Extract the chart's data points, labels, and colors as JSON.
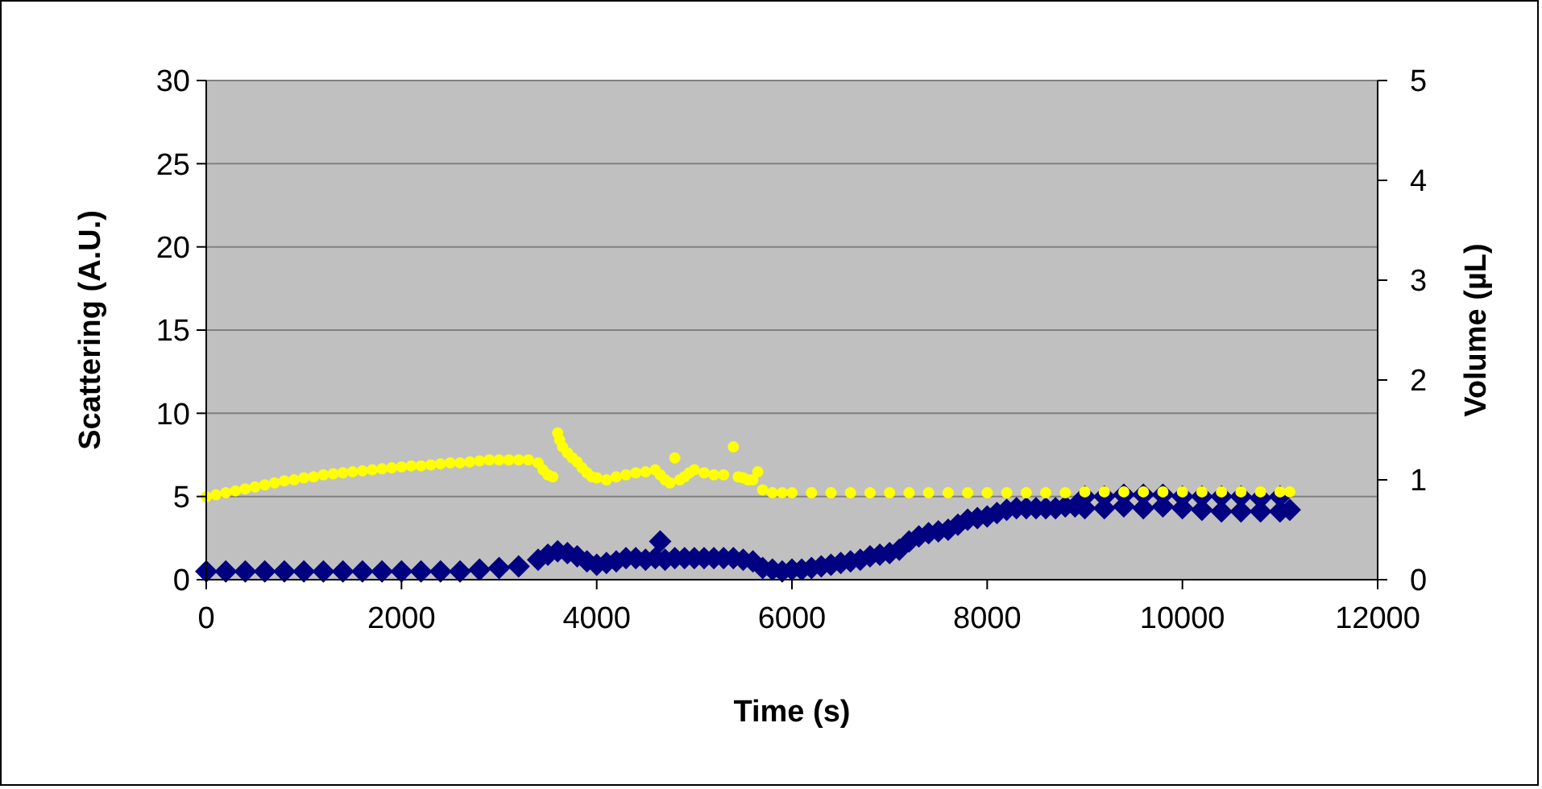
{
  "chart_data": {
    "type": "scatter",
    "xlabel": "Time (s)",
    "ylabel": "Scattering (A.U.)",
    "y2label": "Volume (µL)",
    "xlim": [
      0,
      12000
    ],
    "xticks": [
      0,
      2000,
      4000,
      6000,
      8000,
      10000,
      12000
    ],
    "ylim": [
      0,
      30
    ],
    "yticks": [
      0,
      5,
      10,
      15,
      20,
      25,
      30
    ],
    "y2lim": [
      0,
      5
    ],
    "y2ticks": [
      0,
      1,
      2,
      3,
      4,
      5
    ],
    "grid": "y",
    "series": [
      {
        "color": "#000080",
        "marker": "diamond",
        "x": [
          0,
          200,
          400,
          600,
          800,
          1000,
          1200,
          1400,
          1600,
          1800,
          2000,
          2200,
          2400,
          2600,
          2800,
          3000,
          3200,
          3400,
          3500,
          3600,
          3700,
          3800,
          3900,
          4000,
          4100,
          4200,
          4300,
          4400,
          4500,
          4600,
          4650,
          4700,
          4800,
          4900,
          5000,
          5100,
          5200,
          5300,
          5400,
          5500,
          5600,
          5700,
          5800,
          5900,
          6000,
          6100,
          6200,
          6300,
          6400,
          6500,
          6600,
          6700,
          6800,
          6900,
          7000,
          7100,
          7200,
          7300,
          7400,
          7500,
          7600,
          7700,
          7800,
          7900,
          8000,
          8100,
          8200,
          8300,
          8400,
          8500,
          8600,
          8700,
          8800,
          8900,
          9000,
          9000,
          9200,
          9200,
          9400,
          9400,
          9600,
          9600,
          9800,
          9800,
          10000,
          10000,
          10200,
          10200,
          10400,
          10400,
          10600,
          10600,
          10800,
          10800,
          11000,
          11000,
          11100
        ],
        "values": [
          0.5,
          0.5,
          0.5,
          0.5,
          0.5,
          0.5,
          0.5,
          0.5,
          0.5,
          0.5,
          0.5,
          0.5,
          0.5,
          0.5,
          0.6,
          0.7,
          0.8,
          1.2,
          1.5,
          1.7,
          1.6,
          1.4,
          1.1,
          0.9,
          1.0,
          1.1,
          1.3,
          1.3,
          1.2,
          1.3,
          2.3,
          1.2,
          1.3,
          1.3,
          1.3,
          1.3,
          1.3,
          1.3,
          1.3,
          1.2,
          1.1,
          0.7,
          0.6,
          0.5,
          0.6,
          0.6,
          0.7,
          0.8,
          0.9,
          1.0,
          1.1,
          1.2,
          1.4,
          1.5,
          1.6,
          1.8,
          2.3,
          2.6,
          2.8,
          2.9,
          3.0,
          3.3,
          3.6,
          3.7,
          3.8,
          4.0,
          4.2,
          4.3,
          4.3,
          4.3,
          4.3,
          4.3,
          4.4,
          4.4,
          4.3,
          5.0,
          4.3,
          5.0,
          4.4,
          5.1,
          4.3,
          5.1,
          4.4,
          5.1,
          4.3,
          5.0,
          4.2,
          5.0,
          4.1,
          5.0,
          4.1,
          5.0,
          4.1,
          4.9,
          4.1,
          5.0,
          4.2
        ]
      },
      {
        "color": "#ffff00",
        "marker": "circle",
        "axis": "y2",
        "x": [
          0,
          100,
          200,
          300,
          400,
          500,
          600,
          700,
          800,
          900,
          1000,
          1100,
          1200,
          1300,
          1400,
          1500,
          1600,
          1700,
          1800,
          1900,
          2000,
          2100,
          2200,
          2300,
          2400,
          2500,
          2600,
          2700,
          2800,
          2900,
          3000,
          3100,
          3200,
          3300,
          3400,
          3450,
          3500,
          3550,
          3600,
          3620,
          3650,
          3700,
          3750,
          3800,
          3850,
          3900,
          3950,
          4000,
          4100,
          4200,
          4300,
          4400,
          4500,
          4600,
          4650,
          4700,
          4750,
          4800,
          4850,
          4900,
          4950,
          5000,
          5100,
          5200,
          5300,
          5400,
          5450,
          5500,
          5550,
          5600,
          5650,
          5700,
          5800,
          5900,
          6000,
          6200,
          6400,
          6600,
          6800,
          7000,
          7200,
          7400,
          7600,
          7800,
          8000,
          8200,
          8400,
          8600,
          8800,
          9000,
          9200,
          9400,
          9600,
          9800,
          10000,
          10200,
          10400,
          10600,
          10800,
          11000,
          11100
        ],
        "values": [
          0.83,
          0.85,
          0.87,
          0.89,
          0.91,
          0.93,
          0.95,
          0.97,
          0.99,
          1.0,
          1.02,
          1.03,
          1.05,
          1.06,
          1.07,
          1.08,
          1.09,
          1.1,
          1.11,
          1.12,
          1.13,
          1.14,
          1.14,
          1.15,
          1.16,
          1.17,
          1.17,
          1.18,
          1.19,
          1.2,
          1.2,
          1.2,
          1.2,
          1.2,
          1.17,
          1.1,
          1.05,
          1.03,
          1.47,
          1.4,
          1.33,
          1.27,
          1.22,
          1.18,
          1.12,
          1.07,
          1.03,
          1.02,
          1.0,
          1.03,
          1.05,
          1.07,
          1.08,
          1.1,
          1.05,
          1.0,
          0.97,
          1.22,
          1.0,
          1.03,
          1.07,
          1.1,
          1.07,
          1.05,
          1.05,
          1.33,
          1.03,
          1.02,
          1.0,
          1.0,
          1.08,
          0.9,
          0.87,
          0.87,
          0.87,
          0.87,
          0.87,
          0.87,
          0.87,
          0.87,
          0.87,
          0.87,
          0.87,
          0.87,
          0.87,
          0.87,
          0.87,
          0.87,
          0.87,
          0.88,
          0.88,
          0.88,
          0.88,
          0.88,
          0.88,
          0.88,
          0.88,
          0.88,
          0.88,
          0.88,
          0.88
        ]
      }
    ]
  }
}
